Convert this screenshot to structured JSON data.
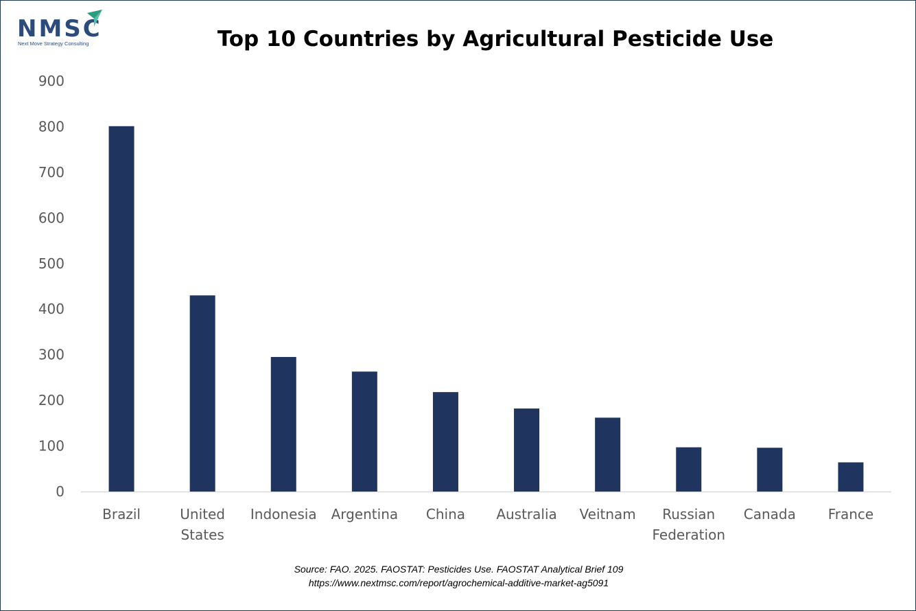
{
  "logo": {
    "text": "NMSC",
    "tagline": "Next Move Strategy Consulting"
  },
  "chart_data": {
    "type": "bar",
    "title": "Top 10 Countries by Agricultural Pesticide Use",
    "xlabel": "",
    "ylabel": "",
    "categories": [
      "Brazil",
      "United States",
      "Indonesia",
      "Argentina",
      "China",
      "Australia",
      "Veitnam",
      "Russian Federation",
      "Canada",
      "France"
    ],
    "category_lines": [
      [
        "Brazil"
      ],
      [
        "United",
        "States"
      ],
      [
        "Indonesia"
      ],
      [
        "Argentina"
      ],
      [
        "China"
      ],
      [
        "Australia"
      ],
      [
        "Veitnam"
      ],
      [
        "Russian",
        "Federation"
      ],
      [
        "Canada"
      ],
      [
        "France"
      ]
    ],
    "values": [
      801,
      430,
      295,
      263,
      218,
      182,
      162,
      97,
      96,
      64
    ],
    "ylim": [
      0,
      900
    ],
    "yticks": [
      0,
      100,
      200,
      300,
      400,
      500,
      600,
      700,
      800,
      900
    ],
    "grid": false,
    "legend": "none",
    "bar_color": "#1f3560"
  },
  "source": {
    "line1": "Source: FAO. 2025. FAOSTAT: Pesticides Use. FAOSTAT Analytical Brief 109",
    "line2": "https://www.nextmsc.com/report/agrochemical-additive-market-ag5091"
  }
}
